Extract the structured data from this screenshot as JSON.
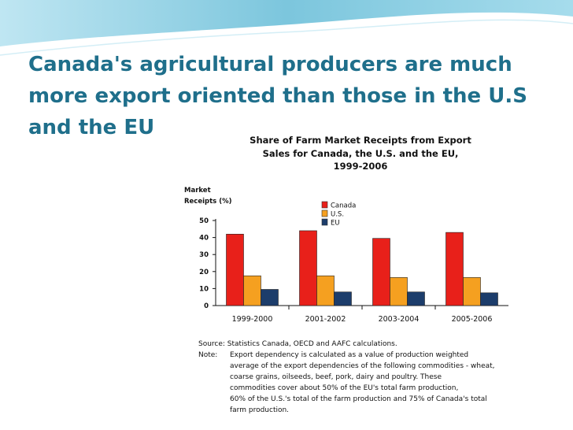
{
  "slide": {
    "title": "Canada's agricultural producers are much more export oriented than those in the U.S and the EU"
  },
  "figure": {
    "source": "Source: Statistics Canada, OECD and AAFC calculations.",
    "note_label": "Note:",
    "note_lines": [
      "Export dependency is calculated as a value of production weighted",
      "average of the export dependencies of the following commodities - wheat,",
      "coarse grains, oilseeds, beef, pork, dairy and poultry. These",
      "commodities cover about 50% of the EU's total farm production,",
      "60% of the U.S.'s total of the farm production and 75% of Canada's total",
      "farm production."
    ]
  },
  "chart_data": {
    "type": "bar",
    "title_lines": [
      "Share of Farm Market Receipts from Export",
      "Sales for Canada, the U.S. and the EU,",
      "1999-2006"
    ],
    "ylabel_lines": [
      "Market",
      "Receipts (%)"
    ],
    "xlabel": "",
    "categories": [
      "1999-2000",
      "2001-2002",
      "2003-2004",
      "2005-2006"
    ],
    "series": [
      {
        "name": "Canada",
        "color": "#e8201a",
        "values": [
          42,
          44,
          39.5,
          43
        ]
      },
      {
        "name": "U.S.",
        "color": "#f5a020",
        "values": [
          17.5,
          17.5,
          16.5,
          16.5
        ]
      },
      {
        "name": "EU",
        "color": "#1c3d6b",
        "values": [
          9.5,
          8,
          8,
          7.5
        ]
      }
    ],
    "ylim": [
      0,
      50
    ],
    "yticks": [
      0,
      10,
      20,
      30,
      40,
      50
    ],
    "grid": false,
    "legend_position": "top-center"
  }
}
